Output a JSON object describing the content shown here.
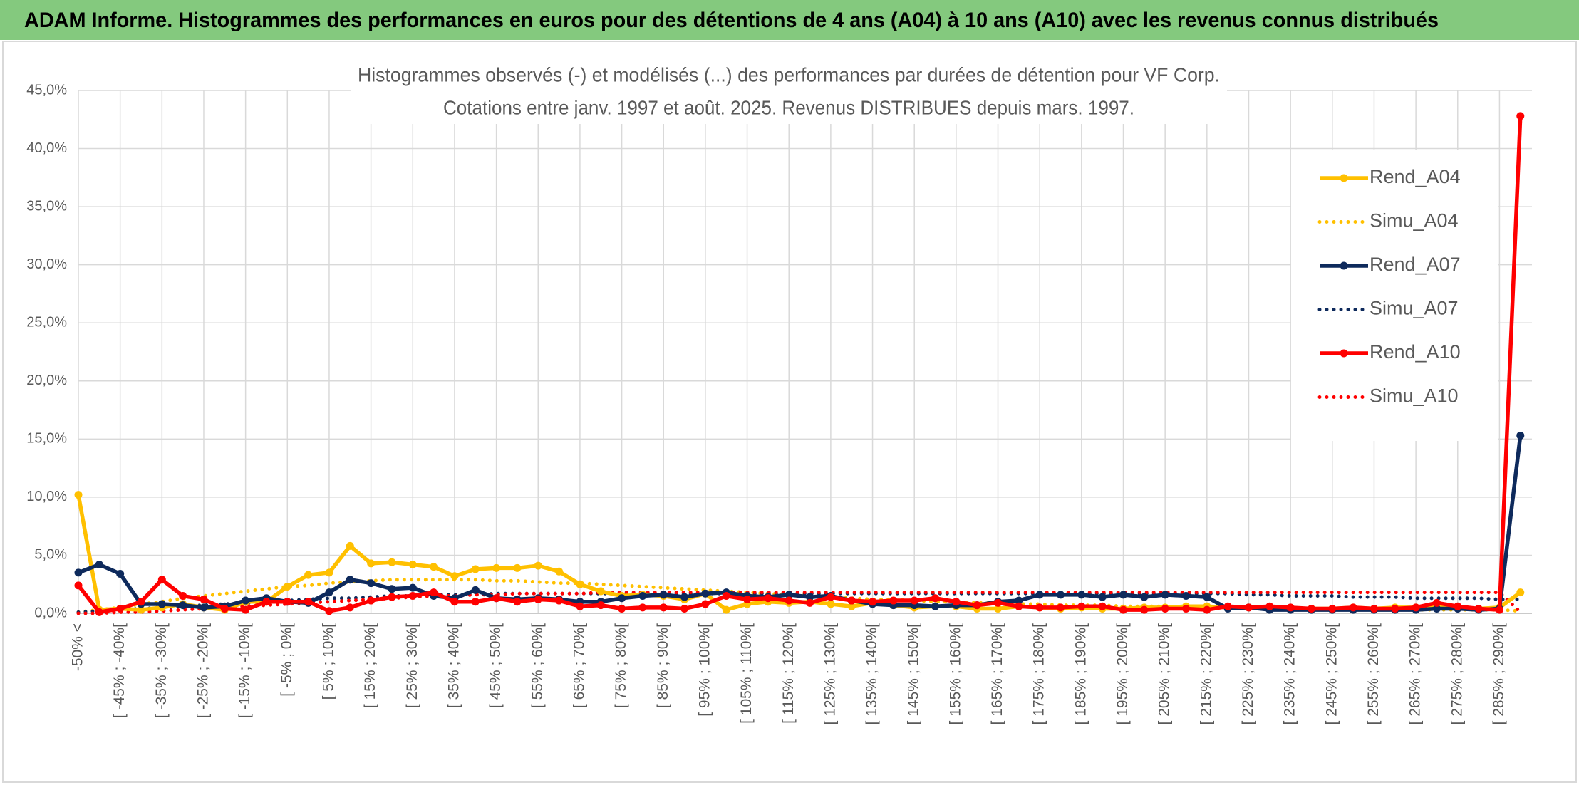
{
  "chart_data": {
    "type": "line",
    "title": "ADAM Informe. Histogrammes des performances en euros pour des détentions de 4 ans (A04) à 10 ans (A10) avec les revenus connus distribués",
    "subtitle": [
      "Histogrammes observés (-) et modélisés (...) des performances par durées de détention pour VF Corp.",
      "Cotations entre janv. 1997 et août. 2025. Revenus DISTRIBUES depuis mars. 1997."
    ],
    "categories": [
      "-50% <",
      null,
      "[ -45% ; -40%[",
      null,
      "[ -35% ; -30%[",
      null,
      "[ -25% ; -20%[",
      null,
      "[ -15% ; -10%[",
      null,
      "[ -5% ; 0%[",
      null,
      "[ 5% ; 10%[",
      null,
      "[ 15% ; 20%[",
      null,
      "[ 25% ; 30%[",
      null,
      "[ 35% ; 40%[",
      null,
      "[ 45% ; 50%[",
      null,
      "[ 55% ; 60%[",
      null,
      "[ 65% ; 70%[",
      null,
      "[ 75% ; 80%[",
      null,
      "[ 85% ; 90%[",
      null,
      "[ 95% ; 100%[",
      null,
      "[ 105% ; 110%[",
      null,
      "[ 115% ; 120%[",
      null,
      "[ 125% ; 130%[",
      null,
      "[ 135% ; 140%[",
      null,
      "[ 145% ; 150%[",
      null,
      "[ 155% ; 160%[",
      null,
      "[ 165% ; 170%[",
      null,
      "[ 175% ; 180%[",
      null,
      "[ 185% ; 190%[",
      null,
      "[ 195% ; 200%[",
      null,
      "[ 205% ; 210%[",
      null,
      "[ 215% ; 220%[",
      null,
      "[ 225% ; 230%[",
      null,
      "[ 235% ; 240%[",
      null,
      "[ 245% ; 250%[",
      null,
      "[ 255% ; 260%[",
      null,
      "[ 265% ; 270%[",
      null,
      "[ 275% ; 280%[",
      null,
      "[ 285% ; 290%[",
      null
    ],
    "series": [
      {
        "name": "Rend_A04",
        "color": "#FFC000",
        "style": "solid",
        "markers": true,
        "values": [
          10.2,
          0.3,
          0.4,
          0.3,
          0.5,
          0.8,
          0.5,
          0.3,
          1.0,
          1.0,
          2.3,
          3.3,
          3.5,
          5.8,
          4.3,
          4.4,
          4.2,
          4.0,
          3.2,
          3.8,
          3.9,
          3.9,
          4.1,
          3.6,
          2.5,
          1.9,
          1.5,
          1.6,
          1.5,
          1.2,
          1.7,
          0.3,
          0.8,
          1.0,
          0.9,
          1.0,
          0.8,
          0.6,
          0.9,
          0.7,
          0.5,
          0.6,
          0.6,
          0.4,
          0.4,
          0.6,
          0.5,
          0.4,
          0.5,
          0.4,
          0.4,
          0.5,
          0.5,
          0.6,
          0.6,
          0.5,
          0.5,
          0.4,
          0.4,
          0.4,
          0.4,
          0.5,
          0.4,
          0.5,
          0.5,
          0.6,
          0.5,
          0.4,
          0.5,
          1.8
        ]
      },
      {
        "name": "Simu_A04",
        "color": "#FFC000",
        "style": "dotted",
        "markers": false,
        "values": [
          0.1,
          0.3,
          0.5,
          0.8,
          1.0,
          1.3,
          1.5,
          1.7,
          1.9,
          2.1,
          2.3,
          2.4,
          2.6,
          2.7,
          2.8,
          2.9,
          2.9,
          2.9,
          2.9,
          2.9,
          2.8,
          2.8,
          2.7,
          2.6,
          2.6,
          2.5,
          2.4,
          2.3,
          2.2,
          2.1,
          2.0,
          1.9,
          1.8,
          1.7,
          1.6,
          1.5,
          1.4,
          1.3,
          1.2,
          1.2,
          1.1,
          1.0,
          1.0,
          0.9,
          0.9,
          0.8,
          0.8,
          0.7,
          0.7,
          0.7,
          0.6,
          0.6,
          0.6,
          0.5,
          0.5,
          0.5,
          0.5,
          0.4,
          0.4,
          0.4,
          0.4,
          0.4,
          0.3,
          0.3,
          0.3,
          0.3,
          0.3,
          0.3,
          0.3,
          0.2
        ]
      },
      {
        "name": "Rend_A07",
        "color": "#0E2A5C",
        "style": "solid",
        "markers": true,
        "values": [
          3.5,
          4.2,
          3.4,
          0.8,
          0.8,
          0.7,
          0.5,
          0.6,
          1.1,
          1.3,
          1.0,
          0.9,
          1.8,
          2.9,
          2.6,
          2.1,
          2.2,
          1.5,
          1.3,
          2.0,
          1.3,
          1.2,
          1.3,
          1.2,
          1.0,
          1.0,
          1.3,
          1.5,
          1.6,
          1.4,
          1.7,
          1.8,
          1.5,
          1.4,
          1.6,
          1.4,
          1.5,
          1.1,
          0.8,
          0.7,
          0.7,
          0.6,
          0.7,
          0.7,
          1.0,
          1.1,
          1.6,
          1.6,
          1.6,
          1.4,
          1.6,
          1.4,
          1.6,
          1.5,
          1.4,
          0.4,
          0.5,
          0.3,
          0.3,
          0.3,
          0.3,
          0.3,
          0.3,
          0.3,
          0.3,
          0.4,
          0.4,
          0.3,
          0.4,
          15.3
        ]
      },
      {
        "name": "Simu_A07",
        "color": "#0E2A5C",
        "style": "dotted",
        "markers": false,
        "values": [
          0.1,
          0.2,
          0.3,
          0.4,
          0.5,
          0.6,
          0.7,
          0.8,
          0.9,
          1.0,
          1.1,
          1.2,
          1.3,
          1.3,
          1.4,
          1.5,
          1.5,
          1.6,
          1.6,
          1.6,
          1.7,
          1.7,
          1.7,
          1.7,
          1.7,
          1.7,
          1.7,
          1.7,
          1.7,
          1.7,
          1.7,
          1.7,
          1.7,
          1.7,
          1.7,
          1.7,
          1.7,
          1.7,
          1.7,
          1.7,
          1.7,
          1.7,
          1.7,
          1.7,
          1.7,
          1.7,
          1.7,
          1.7,
          1.7,
          1.7,
          1.7,
          1.7,
          1.7,
          1.7,
          1.7,
          1.7,
          1.6,
          1.6,
          1.5,
          1.5,
          1.5,
          1.4,
          1.4,
          1.4,
          1.3,
          1.3,
          1.3,
          1.3,
          1.2,
          1.2
        ]
      },
      {
        "name": "Rend_A10",
        "color": "#FF0000",
        "style": "solid",
        "markers": true,
        "values": [
          2.4,
          0.1,
          0.4,
          1.0,
          2.9,
          1.5,
          1.2,
          0.4,
          0.3,
          1.0,
          1.0,
          1.0,
          0.2,
          0.5,
          1.1,
          1.4,
          1.5,
          1.8,
          1.0,
          1.0,
          1.3,
          1.0,
          1.2,
          1.1,
          0.6,
          0.7,
          0.4,
          0.5,
          0.5,
          0.4,
          0.8,
          1.5,
          1.2,
          1.3,
          1.1,
          0.9,
          1.4,
          1.1,
          1.0,
          1.1,
          1.1,
          1.3,
          1.0,
          0.7,
          0.9,
          0.6,
          0.5,
          0.5,
          0.6,
          0.6,
          0.3,
          0.3,
          0.4,
          0.4,
          0.3,
          0.6,
          0.5,
          0.6,
          0.5,
          0.4,
          0.4,
          0.5,
          0.4,
          0.4,
          0.5,
          0.9,
          0.6,
          0.4,
          0.3,
          42.8
        ]
      },
      {
        "name": "Simu_A10",
        "color": "#FF0000",
        "style": "dotted",
        "markers": false,
        "values": [
          0,
          0,
          0.1,
          0.1,
          0.2,
          0.3,
          0.4,
          0.5,
          0.6,
          0.7,
          0.8,
          0.9,
          1.0,
          1.1,
          1.2,
          1.3,
          1.4,
          1.5,
          1.5,
          1.6,
          1.6,
          1.7,
          1.7,
          1.7,
          1.7,
          1.8,
          1.8,
          1.8,
          1.8,
          1.8,
          1.8,
          1.8,
          1.8,
          1.8,
          1.8,
          1.8,
          1.8,
          1.8,
          1.8,
          1.8,
          1.8,
          1.8,
          1.8,
          1.8,
          1.8,
          1.8,
          1.8,
          1.8,
          1.8,
          1.8,
          1.8,
          1.8,
          1.8,
          1.8,
          1.8,
          1.8,
          1.8,
          1.8,
          1.8,
          1.8,
          1.8,
          1.8,
          1.8,
          1.8,
          1.8,
          1.8,
          1.8,
          1.8,
          1.8,
          0.1
        ]
      }
    ],
    "ylim": [
      0,
      45
    ],
    "yticks": [
      {
        "value": 0,
        "label": "0,0%"
      },
      {
        "value": 5,
        "label": "5,0%"
      },
      {
        "value": 10,
        "label": "10,0%"
      },
      {
        "value": 15,
        "label": "15,0%"
      },
      {
        "value": 20,
        "label": "20,0%"
      },
      {
        "value": 25,
        "label": "25,0%"
      },
      {
        "value": 30,
        "label": "30,0%"
      },
      {
        "value": 35,
        "label": "35,0%"
      },
      {
        "value": 40,
        "label": "40,0%"
      },
      {
        "value": 45,
        "label": "45,0%"
      }
    ],
    "grid": true,
    "legend": "right"
  }
}
